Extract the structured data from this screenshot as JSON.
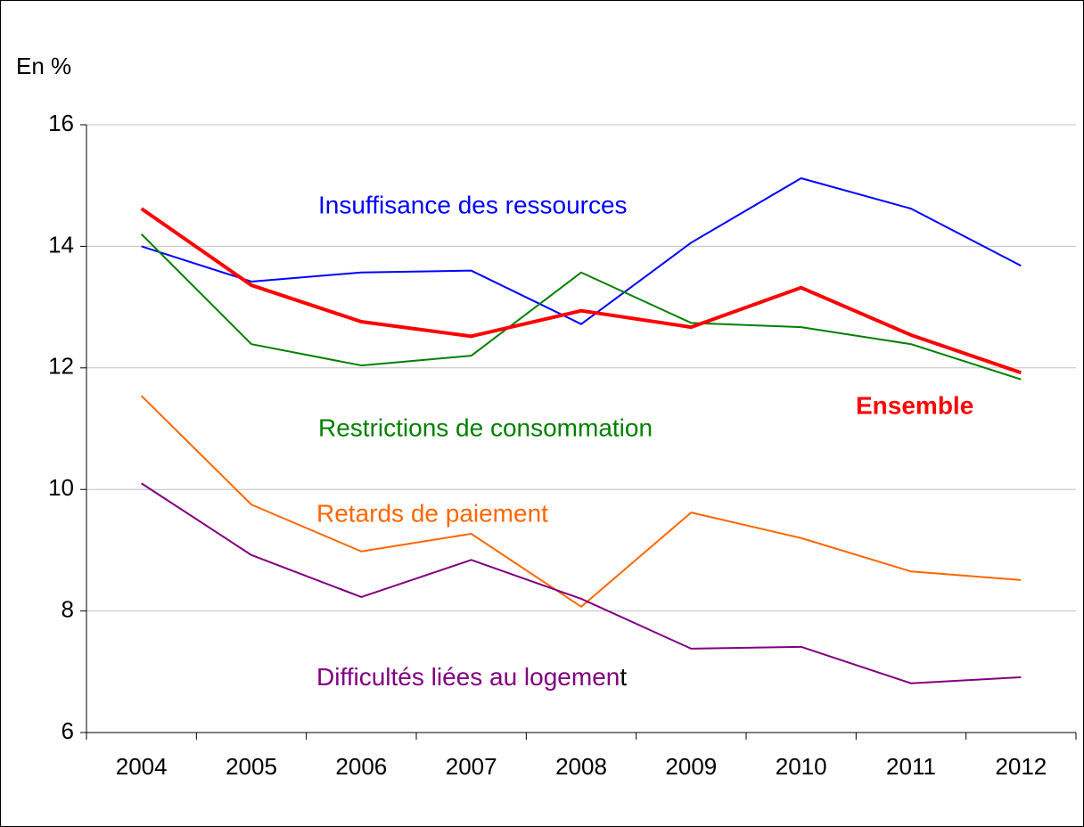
{
  "chart_data": {
    "type": "line",
    "y_label": "En %",
    "categories": [
      "2004",
      "2005",
      "2006",
      "2007",
      "2008",
      "2009",
      "2010",
      "2011",
      "2012"
    ],
    "series": [
      {
        "name": "Insuffisance des ressources",
        "color": "#0000ff",
        "values": [
          14.0,
          13.42,
          13.57,
          13.6,
          12.72,
          14.06,
          15.12,
          14.62,
          13.68
        ]
      },
      {
        "name": "Restrictions de consommation",
        "color": "#008000",
        "values": [
          14.2,
          12.39,
          12.04,
          12.2,
          13.57,
          12.74,
          12.67,
          12.39,
          11.81
        ]
      },
      {
        "name": "Ensemble",
        "color": "#ff0000",
        "values": [
          14.62,
          13.36,
          12.76,
          12.52,
          12.94,
          12.67,
          13.32,
          12.54,
          11.92
        ]
      },
      {
        "name": "Retards de paiement",
        "color": "#ff6600",
        "values": [
          11.54,
          9.75,
          8.98,
          9.27,
          8.07,
          9.62,
          9.2,
          8.65,
          8.51
        ]
      },
      {
        "name": "Difficultés liées au logement",
        "color": "#800080",
        "values": [
          10.1,
          8.92,
          8.23,
          8.84,
          8.2,
          7.38,
          7.41,
          6.81,
          6.91
        ]
      }
    ],
    "ylim": [
      6,
      16
    ],
    "yticks": [
      6,
      8,
      10,
      12,
      14,
      16
    ],
    "grid": true
  }
}
